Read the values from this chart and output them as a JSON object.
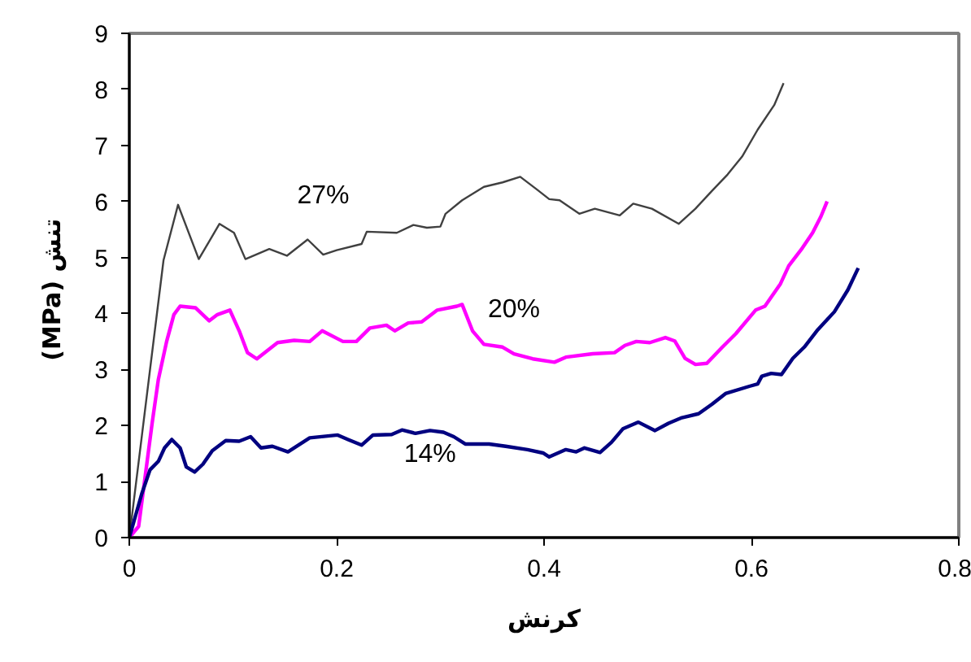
{
  "chart_data": {
    "type": "line",
    "xlabel": "کرنش",
    "ylabel": "(MPa)  تنش",
    "xlim": [
      0,
      0.8
    ],
    "ylim": [
      0,
      9
    ],
    "xticks": [
      0,
      0.2,
      0.4,
      0.6,
      0.8
    ],
    "yticks": [
      0,
      1,
      2,
      3,
      4,
      5,
      6,
      7,
      8,
      9
    ],
    "grid": false,
    "marker": "none",
    "line_style": "solid",
    "series": [
      {
        "name": "27%",
        "color": "#404040",
        "x": [
          0,
          0.033,
          0.047,
          0.067,
          0.087,
          0.101,
          0.112,
          0.135,
          0.152,
          0.172,
          0.187,
          0.2,
          0.224,
          0.229,
          0.258,
          0.274,
          0.287,
          0.3,
          0.305,
          0.321,
          0.342,
          0.36,
          0.377,
          0.394,
          0.405,
          0.415,
          0.434,
          0.449,
          0.473,
          0.486,
          0.504,
          0.53,
          0.546,
          0.562,
          0.577,
          0.591,
          0.606,
          0.622,
          0.631
        ],
        "values": [
          0,
          4.95,
          5.94,
          4.97,
          5.6,
          5.44,
          4.97,
          5.15,
          5.03,
          5.32,
          5.05,
          5.13,
          5.24,
          5.46,
          5.44,
          5.58,
          5.53,
          5.55,
          5.78,
          6.02,
          6.26,
          6.34,
          6.44,
          6.2,
          6.04,
          6.02,
          5.78,
          5.87,
          5.75,
          5.96,
          5.87,
          5.6,
          5.87,
          6.19,
          6.48,
          6.8,
          7.28,
          7.72,
          8.11
        ]
      },
      {
        "name": "20%",
        "color": "#ff00ff",
        "x": [
          0,
          0.009,
          0.022,
          0.028,
          0.036,
          0.043,
          0.049,
          0.064,
          0.077,
          0.085,
          0.097,
          0.106,
          0.114,
          0.123,
          0.143,
          0.159,
          0.174,
          0.186,
          0.206,
          0.219,
          0.232,
          0.248,
          0.256,
          0.269,
          0.282,
          0.297,
          0.316,
          0.321,
          0.331,
          0.342,
          0.36,
          0.371,
          0.389,
          0.41,
          0.421,
          0.447,
          0.468,
          0.478,
          0.489,
          0.502,
          0.517,
          0.526,
          0.536,
          0.546,
          0.557,
          0.572,
          0.585,
          0.604,
          0.613,
          0.628,
          0.636,
          0.648,
          0.659,
          0.667,
          0.673
        ],
        "values": [
          0,
          0.2,
          2.04,
          2.82,
          3.5,
          3.98,
          4.13,
          4.1,
          3.87,
          3.98,
          4.06,
          3.69,
          3.3,
          3.19,
          3.48,
          3.52,
          3.5,
          3.69,
          3.5,
          3.5,
          3.74,
          3.79,
          3.69,
          3.83,
          3.85,
          4.06,
          4.13,
          4.16,
          3.69,
          3.45,
          3.4,
          3.28,
          3.19,
          3.13,
          3.22,
          3.28,
          3.3,
          3.43,
          3.5,
          3.48,
          3.57,
          3.51,
          3.2,
          3.09,
          3.11,
          3.4,
          3.64,
          4.06,
          4.13,
          4.53,
          4.85,
          5.14,
          5.44,
          5.73,
          6
        ]
      },
      {
        "name": "14%",
        "color": "#000080",
        "x": [
          0,
          0.012,
          0.02,
          0.028,
          0.034,
          0.041,
          0.049,
          0.055,
          0.063,
          0.071,
          0.08,
          0.093,
          0.106,
          0.117,
          0.127,
          0.138,
          0.153,
          0.174,
          0.201,
          0.211,
          0.224,
          0.235,
          0.253,
          0.263,
          0.276,
          0.29,
          0.303,
          0.313,
          0.324,
          0.347,
          0.363,
          0.384,
          0.399,
          0.405,
          0.421,
          0.431,
          0.439,
          0.454,
          0.465,
          0.476,
          0.491,
          0.507,
          0.52,
          0.533,
          0.549,
          0.562,
          0.575,
          0.598,
          0.606,
          0.61,
          0.619,
          0.629,
          0.64,
          0.651,
          0.664,
          0.68,
          0.693,
          0.703
        ],
        "values": [
          0,
          0.78,
          1.21,
          1.36,
          1.6,
          1.75,
          1.6,
          1.26,
          1.17,
          1.31,
          1.55,
          1.73,
          1.72,
          1.8,
          1.6,
          1.63,
          1.53,
          1.78,
          1.83,
          1.75,
          1.65,
          1.83,
          1.84,
          1.92,
          1.86,
          1.91,
          1.88,
          1.8,
          1.67,
          1.67,
          1.63,
          1.57,
          1.51,
          1.44,
          1.57,
          1.53,
          1.6,
          1.52,
          1.7,
          1.94,
          2.06,
          1.91,
          2.04,
          2.14,
          2.21,
          2.38,
          2.57,
          2.7,
          2.74,
          2.88,
          2.93,
          2.91,
          3.2,
          3.4,
          3.71,
          4.03,
          4.42,
          4.81
        ]
      }
    ]
  }
}
